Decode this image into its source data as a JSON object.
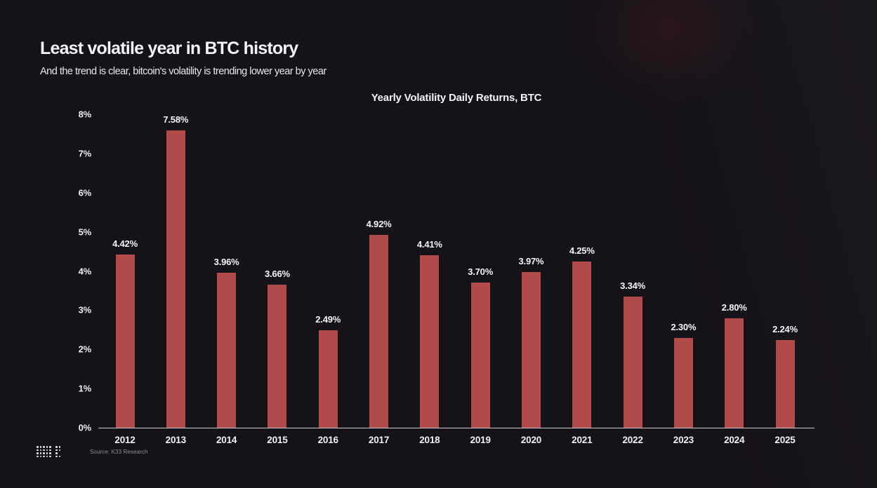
{
  "slide": {
    "title": "Least volatile year in BTC history",
    "subtitle": "And the trend is clear, bitcoin's volatility is trending lower year by year",
    "source": "Source: K33 Research"
  },
  "logo": {
    "name": "k33-dot-logo",
    "pattern": [
      "11111011",
      "11111011",
      "11111010",
      "11111011"
    ]
  },
  "chart_data": {
    "type": "bar",
    "title": "Yearly Volatility Daily Returns, BTC",
    "categories": [
      "2012",
      "2013",
      "2014",
      "2015",
      "2016",
      "2017",
      "2018",
      "2019",
      "2020",
      "2021",
      "2022",
      "2023",
      "2024",
      "2025"
    ],
    "values": [
      4.42,
      7.58,
      3.96,
      3.66,
      2.49,
      4.92,
      4.41,
      3.7,
      3.97,
      4.25,
      3.34,
      2.3,
      2.8,
      2.24
    ],
    "bar_labels": [
      "4.42%",
      "7.58%",
      "3.96%",
      "3.66%",
      "2.49%",
      "4.92%",
      "4.41%",
      "3.70%",
      "3.97%",
      "4.25%",
      "3.34%",
      "2.30%",
      "2.80%",
      "2.24%"
    ],
    "xlabel": "",
    "ylabel": "",
    "ylim": [
      0,
      8
    ],
    "ytick_values": [
      0,
      1,
      2,
      3,
      4,
      5,
      6,
      7,
      8
    ],
    "yticks": [
      "0%",
      "1%",
      "2%",
      "3%",
      "4%",
      "5%",
      "6%",
      "7%",
      "8%"
    ],
    "grid": false,
    "legend": "none",
    "colors": {
      "bar": "#b24a4a",
      "background": "#151218",
      "text": "#f2f1f3",
      "axis_line": "#cfcfd2",
      "source_text": "#8f8f94"
    }
  }
}
